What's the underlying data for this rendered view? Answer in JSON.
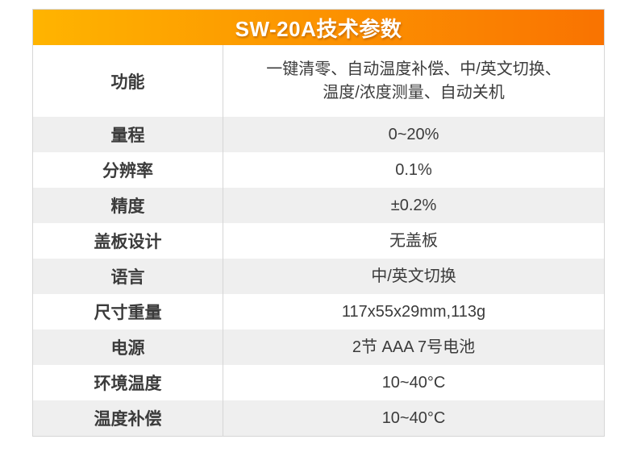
{
  "header": {
    "title": "SW-20A技术参数"
  },
  "rows": [
    {
      "label": "功能",
      "value": "一键清零、自动温度补偿、中/英文切换、\n温度/浓度测量、自动关机"
    },
    {
      "label": "量程",
      "value": "0~20%"
    },
    {
      "label": "分辨率",
      "value": "0.1%"
    },
    {
      "label": "精度",
      "value": "±0.2%"
    },
    {
      "label": "盖板设计",
      "value": "无盖板"
    },
    {
      "label": "语言",
      "value": "中/英文切换"
    },
    {
      "label": "尺寸重量",
      "value": "117x55x29mm,113g"
    },
    {
      "label": "电源",
      "value": "2节 AAA 7号电池"
    },
    {
      "label": "环境温度",
      "value": "10~40°C"
    },
    {
      "label": "温度补偿",
      "value": "10~40°C"
    }
  ],
  "colors": {
    "header_gradient_start": "#ffb400",
    "header_gradient_end": "#f97301",
    "header_text": "#ffffff",
    "row_alt_background": "#efefef",
    "text": "#3b3b3b",
    "divider": "#d6d6d6"
  }
}
